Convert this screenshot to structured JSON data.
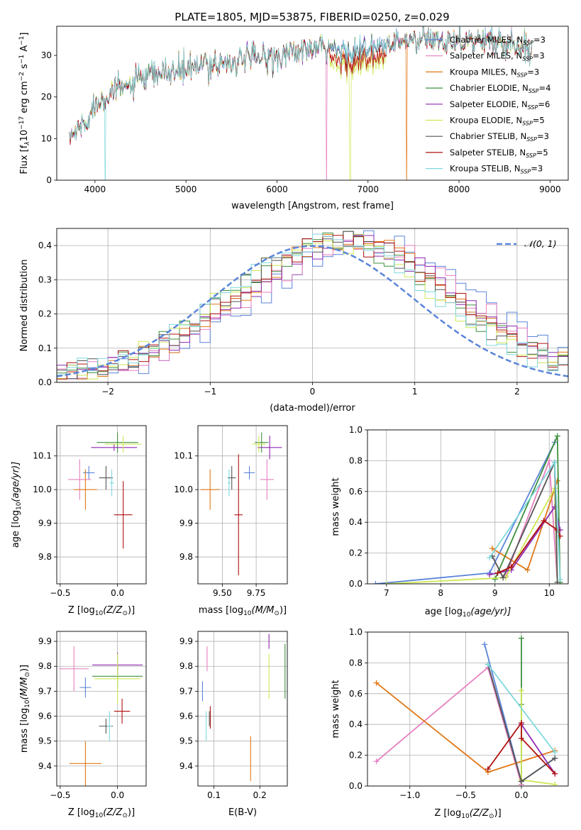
{
  "figure_title": "PLATE=1805, MJD=53875, FIBERID=0250, z=0.029",
  "colors": {
    "Chabrier MILES": "#5a84d9",
    "Salpeter MILES": "#e67fbf",
    "Kroupa MILES": "#e07818",
    "Chabrier ELODIE": "#3f8f3f",
    "Salpeter ELODIE": "#8e28b0",
    "Kroupa ELODIE": "#cde854",
    "Chabrier STELIB": "#555555",
    "Salpeter STELIB": "#b01010",
    "Kroupa STELIB": "#7fd8dd",
    "gaussian": "#5a84d9"
  },
  "chart_data": [
    {
      "id": "spectrum",
      "type": "line",
      "xlabel": "wavelength [Angstrom, rest frame]",
      "ylabel": "Flux [f",
      "ylabel_sub": "λ",
      "ylabel_mid": "10",
      "ylabel_exp1": "−17",
      "ylabel_mid2": " erg cm",
      "ylabel_exp2": "−2",
      "ylabel_mid3": " s",
      "ylabel_exp3": "−1",
      "ylabel_mid4": " A",
      "ylabel_exp4": "−1",
      "ylabel_end": "]",
      "xlim": [
        3580,
        9200
      ],
      "ylim": [
        0,
        37
      ],
      "xticks": [
        4000,
        5000,
        6000,
        7000,
        8000,
        9000
      ],
      "yticks": [
        0,
        10,
        20,
        30
      ],
      "continuum": [
        [
          3720,
          10
        ],
        [
          3800,
          12
        ],
        [
          3900,
          14
        ],
        [
          4000,
          18
        ],
        [
          4100,
          20.5
        ],
        [
          4300,
          22
        ],
        [
          4500,
          24
        ],
        [
          4700,
          25.5
        ],
        [
          5000,
          26.5
        ],
        [
          5300,
          28
        ],
        [
          5500,
          28.5
        ],
        [
          5800,
          29.5
        ],
        [
          6000,
          30
        ],
        [
          6300,
          31
        ],
        [
          6500,
          31.5
        ],
        [
          6700,
          31
        ],
        [
          6900,
          31.5
        ],
        [
          7000,
          31
        ],
        [
          7200,
          32.5
        ],
        [
          7500,
          33.5
        ],
        [
          8000,
          33.8
        ],
        [
          8500,
          33
        ],
        [
          8800,
          31.5
        ]
      ],
      "legend": [
        {
          "label": "Chabrier MILES, N",
          "sub": "SSP",
          "tail": "=3"
        },
        {
          "label": "Salpeter MILES, N",
          "sub": "SSP",
          "tail": "=3"
        },
        {
          "label": "Kroupa MILES, N",
          "sub": "SSP",
          "tail": "=3"
        },
        {
          "label": "Chabrier ELODIE, N",
          "sub": "SSP",
          "tail": "=4"
        },
        {
          "label": "Salpeter ELODIE, N",
          "sub": "SSP",
          "tail": "=6"
        },
        {
          "label": "Kroupa ELODIE, N",
          "sub": "SSP",
          "tail": "=5"
        },
        {
          "label": "Chabrier STELIB, N",
          "sub": "SSP",
          "tail": "=3"
        },
        {
          "label": "Salpeter STELIB, N",
          "sub": "SSP",
          "tail": "=5"
        },
        {
          "label": "Kroupa STELIB, N",
          "sub": "SSP",
          "tail": "=3"
        }
      ]
    },
    {
      "id": "residuals",
      "type": "line",
      "xlabel": "(data-model)/error",
      "ylabel": "Normed distribution",
      "xlim": [
        -2.5,
        2.5
      ],
      "ylim": [
        0,
        0.45
      ],
      "xticks": [
        -2,
        -1,
        0,
        1,
        2
      ],
      "xtick_labels": [
        "−2",
        "−1",
        "0",
        "1",
        "2"
      ],
      "yticks": [
        0.0,
        0.1,
        0.2,
        0.3,
        0.4
      ],
      "ytick_labels": [
        "0.0",
        "0.1",
        "0.2",
        "0.3",
        "0.4"
      ],
      "gaussian_label": "𝒩(0, 1)",
      "bin_width": 0.1,
      "series_shift": [
        0.55,
        0.45,
        0.35,
        0.25,
        0.35,
        0.2,
        0.25,
        0.3,
        0.15
      ]
    },
    {
      "id": "z_age",
      "type": "scatter",
      "xlabel": "Z [log",
      "xlabel_sub": "10",
      "xlabel_tail": "(Z/Z",
      "xlabel_sun": "⊙",
      "xlabel_end": ")]",
      "ylabel": "age  [log",
      "ylabel_sub": "10",
      "ylabel_tail": "(age/yr)]",
      "xlim": [
        -0.53,
        0.25
      ],
      "ylim": [
        9.72,
        10.19
      ],
      "xticks": [
        -0.5,
        0.0
      ],
      "xtick_labels": [
        "−0.5",
        "0.0"
      ],
      "yticks": [
        9.8,
        9.9,
        10.0,
        10.1
      ],
      "ytick_labels": [
        "9.8",
        "9.9",
        "10.0",
        "10.1"
      ],
      "points": [
        {
          "s": "Chabrier MILES",
          "x": -0.25,
          "y": 10.05,
          "ex": 0.05,
          "ey": 0.02
        },
        {
          "s": "Salpeter MILES",
          "x": -0.33,
          "y": 10.03,
          "ex": 0.1,
          "ey": 0.06
        },
        {
          "s": "Kroupa MILES",
          "x": -0.28,
          "y": 10.0,
          "ex": 0.1,
          "ey": 0.06
        },
        {
          "s": "Chabrier ELODIE",
          "x": 0.0,
          "y": 10.14,
          "ex": 0.18,
          "ey": 0.03
        },
        {
          "s": "Salpeter ELODIE",
          "x": -0.03,
          "y": 10.125,
          "ex": 0.2,
          "ey": 0.01
        },
        {
          "s": "Kroupa ELODIE",
          "x": 0.05,
          "y": 10.135,
          "ex": 0.16,
          "ey": 0.025
        },
        {
          "s": "Chabrier STELIB",
          "x": -0.1,
          "y": 10.035,
          "ex": 0.06,
          "ey": 0.035
        },
        {
          "s": "Salpeter STELIB",
          "x": 0.05,
          "y": 9.925,
          "ex": 0.08,
          "ey": 0.1
        },
        {
          "s": "Kroupa STELIB",
          "x": -0.05,
          "y": 10.02,
          "ex": 0.02,
          "ey": 0.04
        }
      ]
    },
    {
      "id": "mass_age",
      "type": "scatter",
      "xlabel": "mass [log",
      "xlabel_sub": "10",
      "xlabel_tail": "(M/M",
      "xlabel_sun": "⊙",
      "xlabel_end": ")]",
      "xlim": [
        9.32,
        9.98
      ],
      "ylim": [
        9.72,
        10.19
      ],
      "xticks": [
        9.5,
        9.75
      ],
      "xtick_labels": [
        "9.50",
        "9.75"
      ],
      "yticks": [
        9.8,
        9.9,
        10.0,
        10.1
      ],
      "ytick_labels": [
        "9.8",
        "9.9",
        "10.0",
        "10.1"
      ],
      "points": [
        {
          "s": "Chabrier MILES",
          "x": 9.7,
          "y": 10.05,
          "ex": 0.04,
          "ey": 0.02
        },
        {
          "s": "Salpeter MILES",
          "x": 9.83,
          "y": 10.03,
          "ex": 0.05,
          "ey": 0.06
        },
        {
          "s": "Kroupa MILES",
          "x": 9.41,
          "y": 10.0,
          "ex": 0.07,
          "ey": 0.06
        },
        {
          "s": "Chabrier ELODIE",
          "x": 9.79,
          "y": 10.14,
          "ex": 0.05,
          "ey": 0.03
        },
        {
          "s": "Salpeter ELODIE",
          "x": 9.85,
          "y": 10.125,
          "ex": 0.09,
          "ey": 0.035
        },
        {
          "s": "Kroupa ELODIE",
          "x": 9.77,
          "y": 10.135,
          "ex": 0.05,
          "ey": 0.025
        },
        {
          "s": "Chabrier STELIB",
          "x": 9.57,
          "y": 10.035,
          "ex": 0.03,
          "ey": 0.035
        },
        {
          "s": "Salpeter STELIB",
          "x": 9.62,
          "y": 9.925,
          "ex": 0.03,
          "ey": 0.18
        },
        {
          "s": "Kroupa STELIB",
          "x": 9.55,
          "y": 10.02,
          "ex": 0.01,
          "ey": 0.04
        }
      ]
    },
    {
      "id": "weights_age",
      "type": "line",
      "xlabel": "age  [log",
      "xlabel_sub": "10",
      "xlabel_tail": "(age/yr)]",
      "ylabel": "mass weight",
      "xlim": [
        6.65,
        10.35
      ],
      "ylim": [
        0,
        1.0
      ],
      "xticks": [
        7,
        8,
        9,
        10
      ],
      "xtick_labels": [
        "7",
        "8",
        "9",
        "10"
      ],
      "yticks": [
        0.0,
        0.2,
        0.4,
        0.6,
        0.8,
        1.0
      ],
      "ytick_labels": [
        "0.0",
        "0.2",
        "0.4",
        "0.6",
        "0.8",
        "1.0"
      ],
      "series": [
        {
          "s": "Chabrier MILES",
          "x": [
            6.8,
            8.9,
            10.1
          ],
          "y": [
            0.0,
            0.07,
            0.92
          ]
        },
        {
          "s": "Salpeter MILES",
          "x": [
            9.2,
            10.0,
            10.15
          ],
          "y": [
            0.05,
            0.8,
            0.01
          ]
        },
        {
          "s": "Kroupa MILES",
          "x": [
            8.95,
            9.6,
            10.15
          ],
          "y": [
            0.23,
            0.09,
            0.67
          ]
        },
        {
          "s": "Chabrier ELODIE",
          "x": [
            9.0,
            10.15,
            10.2
          ],
          "y": [
            0.03,
            0.96,
            0.01
          ]
        },
        {
          "s": "Salpeter ELODIE",
          "x": [
            8.9,
            9.3,
            10.1,
            10.2
          ],
          "y": [
            0.06,
            0.09,
            0.5,
            0.35
          ]
        },
        {
          "s": "Kroupa ELODIE",
          "x": [
            7.0,
            9.2,
            10.1,
            10.15
          ],
          "y": [
            0.0,
            0.04,
            0.62,
            0.01
          ]
        },
        {
          "s": "Chabrier STELIB",
          "x": [
            8.95,
            9.15,
            10.1,
            10.15
          ],
          "y": [
            0.18,
            0.04,
            0.79,
            0.01
          ]
        },
        {
          "s": "Salpeter STELIB",
          "x": [
            9.05,
            9.3,
            9.9,
            10.15,
            10.2
          ],
          "y": [
            0.07,
            0.11,
            0.41,
            0.35,
            0.31
          ]
        },
        {
          "s": "Kroupa STELIB",
          "x": [
            8.9,
            10.1,
            10.2
          ],
          "y": [
            0.17,
            0.79,
            0.03
          ]
        }
      ]
    },
    {
      "id": "z_mass",
      "type": "scatter",
      "xlabel": "Z [log",
      "xlabel_sub": "10",
      "xlabel_tail": "(Z/Z",
      "xlabel_sun": "⊙",
      "xlabel_end": ")]",
      "ylabel": "mass [log",
      "ylabel_sub": "10",
      "ylabel_tail": "(M/M",
      "ylabel_sun": "⊙",
      "ylabel_end": ")]",
      "xlim": [
        -0.53,
        0.25
      ],
      "ylim": [
        9.32,
        9.94
      ],
      "xticks": [
        -0.5,
        0.0
      ],
      "xtick_labels": [
        "−0.5",
        "0.0"
      ],
      "yticks": [
        9.4,
        9.5,
        9.6,
        9.7,
        9.8,
        9.9
      ],
      "ytick_labels": [
        "9.4",
        "9.5",
        "9.6",
        "9.7",
        "9.8",
        "9.9"
      ],
      "points": [
        {
          "s": "Chabrier MILES",
          "x": -0.28,
          "y": 9.715,
          "ex": 0.05,
          "ey": 0.04
        },
        {
          "s": "Salpeter MILES",
          "x": -0.38,
          "y": 9.79,
          "ex": 0.13,
          "ey": 0.09
        },
        {
          "s": "Kroupa MILES",
          "x": -0.28,
          "y": 9.41,
          "ex": 0.14,
          "ey": 0.09
        },
        {
          "s": "Chabrier ELODIE",
          "x": 0.0,
          "y": 9.76,
          "ex": 0.22,
          "ey": 0.05
        },
        {
          "s": "Salpeter ELODIE",
          "x": 0.0,
          "y": 9.805,
          "ex": 0.22,
          "ey": 0.05
        },
        {
          "s": "Kroupa ELODIE",
          "x": 0.0,
          "y": 9.75,
          "ex": 0.2,
          "ey": 0.1
        },
        {
          "s": "Chabrier STELIB",
          "x": -0.1,
          "y": 9.56,
          "ex": 0.06,
          "ey": 0.03
        },
        {
          "s": "Salpeter STELIB",
          "x": 0.04,
          "y": 9.62,
          "ex": 0.07,
          "ey": 0.05
        },
        {
          "s": "Kroupa STELIB",
          "x": -0.07,
          "y": 9.56,
          "ex": 0.02,
          "ey": 0.06
        }
      ]
    },
    {
      "id": "ebv_mass",
      "type": "scatter",
      "xlabel": "E(B-V)",
      "xlim": [
        0.065,
        0.26
      ],
      "ylim": [
        9.32,
        9.94
      ],
      "xticks": [
        0.1,
        0.2
      ],
      "xtick_labels": [
        "0.1",
        "0.2"
      ],
      "yticks": [
        9.4,
        9.5,
        9.6,
        9.7,
        9.8,
        9.9
      ],
      "ytick_labels": [
        "9.4",
        "9.5",
        "9.6",
        "9.7",
        "9.8",
        "9.9"
      ],
      "points": [
        {
          "s": "Chabrier MILES",
          "x": 0.075,
          "y": 9.7,
          "ex": 0.0,
          "ey": 0.04
        },
        {
          "s": "Salpeter MILES",
          "x": 0.085,
          "y": 9.83,
          "ex": 0.0,
          "ey": 0.05
        },
        {
          "s": "Kroupa MILES",
          "x": 0.18,
          "y": 9.43,
          "ex": 0.0,
          "ey": 0.09
        },
        {
          "s": "Chabrier ELODIE",
          "x": 0.255,
          "y": 9.78,
          "ex": 0.0,
          "ey": 0.11
        },
        {
          "s": "Salpeter ELODIE",
          "x": 0.22,
          "y": 9.9,
          "ex": 0.0,
          "ey": 0.03
        },
        {
          "s": "Kroupa ELODIE",
          "x": 0.22,
          "y": 9.76,
          "ex": 0.0,
          "ey": 0.09
        },
        {
          "s": "Chabrier STELIB",
          "x": 0.09,
          "y": 9.59,
          "ex": 0.0,
          "ey": 0.03
        },
        {
          "s": "Salpeter STELIB",
          "x": 0.092,
          "y": 9.595,
          "ex": 0.0,
          "ey": 0.045
        },
        {
          "s": "Kroupa STELIB",
          "x": 0.083,
          "y": 9.56,
          "ex": 0.0,
          "ey": 0.06
        }
      ]
    },
    {
      "id": "weights_z",
      "type": "line",
      "xlabel": "Z [log",
      "xlabel_sub": "10",
      "xlabel_tail": "(Z/Z",
      "xlabel_sun": "⊙",
      "xlabel_end": ")]",
      "ylabel": "mass weight",
      "xlim": [
        -1.38,
        0.42
      ],
      "ylim": [
        0,
        1.0
      ],
      "xticks": [
        -1.0,
        -0.5,
        0.0
      ],
      "xtick_labels": [
        "−1.0",
        "−0.5",
        "0.0"
      ],
      "yticks": [
        0.0,
        0.2,
        0.4,
        0.6,
        0.8,
        1.0
      ],
      "ytick_labels": [
        "0.0",
        "0.2",
        "0.4",
        "0.6",
        "0.8",
        "1.0"
      ],
      "series": [
        {
          "s": "Chabrier MILES",
          "x": [
            -0.33,
            0.0,
            0.3
          ],
          "y": [
            0.92,
            0.03,
            0.18
          ]
        },
        {
          "s": "Salpeter MILES",
          "x": [
            -1.3,
            -0.3,
            0.0
          ],
          "y": [
            0.16,
            0.77,
            0.01
          ]
        },
        {
          "s": "Kroupa MILES",
          "x": [
            -1.3,
            -0.3,
            0.3
          ],
          "y": [
            0.67,
            0.09,
            0.23
          ]
        },
        {
          "s": "Chabrier ELODIE",
          "x": [
            0.0,
            0.0,
            0.0
          ],
          "y": [
            0.96,
            0.53,
            0.03
          ]
        },
        {
          "s": "Salpeter ELODIE",
          "x": [
            0.0,
            0.3
          ],
          "y": [
            0.4,
            0.08
          ]
        },
        {
          "s": "Kroupa ELODIE",
          "x": [
            0.0,
            0.0,
            0.3
          ],
          "y": [
            0.62,
            0.04,
            0.01
          ]
        },
        {
          "s": "Chabrier STELIB",
          "x": [
            -0.3,
            0.0,
            0.3
          ],
          "y": [
            0.79,
            0.03,
            0.18
          ]
        },
        {
          "s": "Salpeter STELIB",
          "x": [
            -0.3,
            0.0,
            0.0,
            0.3
          ],
          "y": [
            0.11,
            0.41,
            0.31,
            0.08
          ]
        },
        {
          "s": "Kroupa STELIB",
          "x": [
            -0.3,
            0.3
          ],
          "y": [
            0.79,
            0.22
          ]
        }
      ]
    }
  ]
}
